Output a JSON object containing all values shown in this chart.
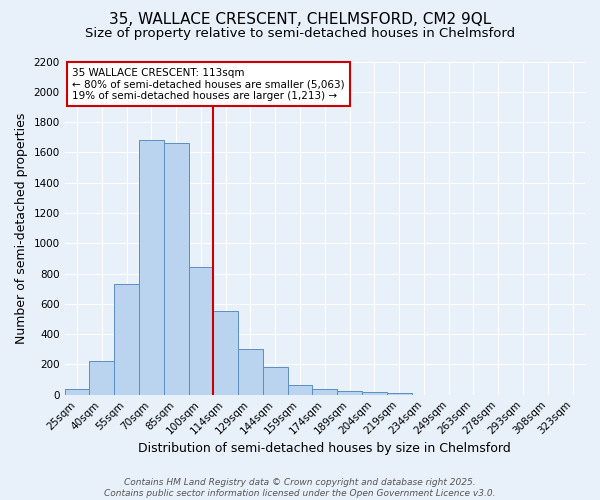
{
  "title1": "35, WALLACE CRESCENT, CHELMSFORD, CM2 9QL",
  "title2": "Size of property relative to semi-detached houses in Chelmsford",
  "xlabel": "Distribution of semi-detached houses by size in Chelmsford",
  "ylabel": "Number of semi-detached properties",
  "bin_labels": [
    "25sqm",
    "40sqm",
    "55sqm",
    "70sqm",
    "85sqm",
    "100sqm",
    "114sqm",
    "129sqm",
    "144sqm",
    "159sqm",
    "174sqm",
    "189sqm",
    "204sqm",
    "219sqm",
    "234sqm",
    "249sqm",
    "263sqm",
    "278sqm",
    "293sqm",
    "308sqm",
    "323sqm"
  ],
  "bar_values": [
    40,
    225,
    730,
    1680,
    1660,
    845,
    555,
    300,
    185,
    65,
    37,
    25,
    15,
    10,
    0,
    0,
    0,
    0,
    0,
    0,
    0
  ],
  "bar_color": "#bad4f0",
  "bar_edge_color": "#5b8ec4",
  "bg_color": "#e8f0fa",
  "grid_color": "#ffffff",
  "vline_x": 6,
  "vline_color": "#cc0000",
  "annotation_text": "35 WALLACE CRESCENT: 113sqm\n← 80% of semi-detached houses are smaller (5,063)\n19% of semi-detached houses are larger (1,213) →",
  "annotation_box_color": "#ffffff",
  "annotation_edge_color": "#cc0000",
  "ylim": [
    0,
    2200
  ],
  "yticks": [
    0,
    200,
    400,
    600,
    800,
    1000,
    1200,
    1400,
    1600,
    1800,
    2000,
    2200
  ],
  "footer1": "Contains HM Land Registry data © Crown copyright and database right 2025.",
  "footer2": "Contains public sector information licensed under the Open Government Licence v3.0.",
  "title_fontsize": 11,
  "subtitle_fontsize": 9.5,
  "axis_label_fontsize": 9,
  "tick_fontsize": 7.5,
  "annotation_fontsize": 7.5,
  "footer_fontsize": 6.5
}
